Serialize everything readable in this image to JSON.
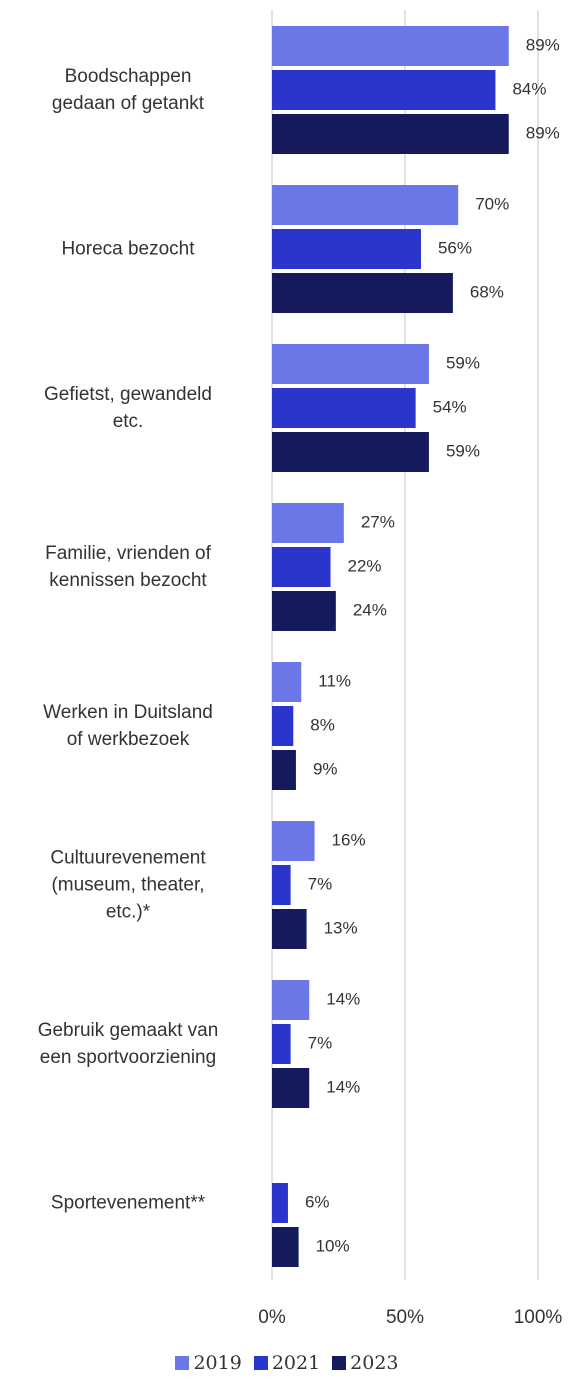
{
  "chart_data": {
    "type": "bar",
    "orientation": "horizontal",
    "categories": [
      "Boodschappen\ngedaan of getankt",
      "Horeca bezocht",
      "Gefietst, gewandeld\netc.",
      "Familie, vrienden of\nkennissen bezocht",
      "Werken in Duitsland\nof werkbezoek",
      "Cultuurevenement\n(museum, theater,\netc.)*",
      "Gebruik gemaakt van\neen sportvoorziening",
      "Sportevenement**"
    ],
    "series": [
      {
        "name": "2019",
        "color": "#6b77e6",
        "values": [
          89,
          70,
          59,
          27,
          11,
          16,
          14,
          null
        ],
        "value_labels": [
          "89%",
          "70%",
          "59%",
          "27%",
          "11%",
          "16%",
          "14%",
          null
        ]
      },
      {
        "name": "2021",
        "color": "#2a35cc",
        "values": [
          84,
          56,
          54,
          22,
          8,
          7,
          7,
          6
        ],
        "value_labels": [
          "84%",
          "56%",
          "54%",
          "22%",
          "8%",
          "7%",
          "7%",
          "6%"
        ]
      },
      {
        "name": "2023",
        "color": "#141a5c",
        "values": [
          89,
          68,
          59,
          24,
          9,
          13,
          14,
          10
        ],
        "value_labels": [
          "89%",
          "68%",
          "59%",
          "24%",
          "9%",
          "13%",
          "14%",
          "10%"
        ]
      }
    ],
    "xlim": [
      0,
      100
    ],
    "xticks": [
      {
        "value": 0,
        "label": "0%"
      },
      {
        "value": 50,
        "label": "50%"
      },
      {
        "value": 100,
        "label": "100%"
      }
    ],
    "grid": true,
    "legend": "bottom"
  }
}
